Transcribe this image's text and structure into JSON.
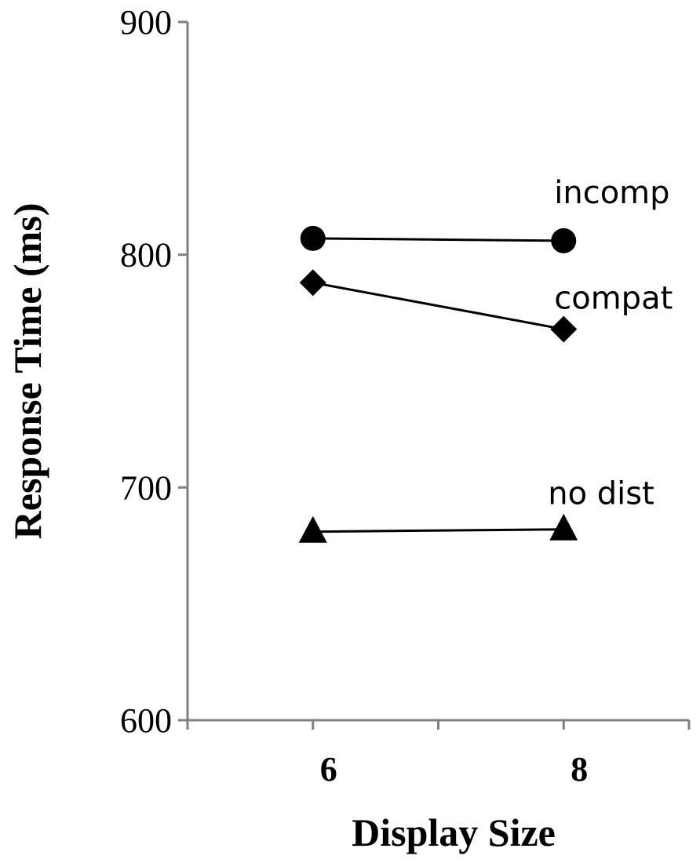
{
  "chart_data": {
    "type": "line",
    "title": "",
    "xlabel": "Display Size",
    "ylabel": "Response Time (ms)",
    "categories": [
      "6",
      "8"
    ],
    "xlim": [
      5,
      9
    ],
    "ylim": [
      600,
      900
    ],
    "yticks": [
      600,
      700,
      800,
      900
    ],
    "grid": false,
    "legend": "inline labels at right of series",
    "series": [
      {
        "name": "incomp",
        "marker": "circle",
        "values": [
          807,
          806
        ]
      },
      {
        "name": "compat",
        "marker": "diamond",
        "values": [
          788,
          768
        ]
      },
      {
        "name": "no dist",
        "marker": "triangle",
        "values": [
          681,
          682
        ]
      }
    ],
    "colors": {
      "axis": "#808080",
      "line": "#000000",
      "marker": "#000000"
    }
  }
}
